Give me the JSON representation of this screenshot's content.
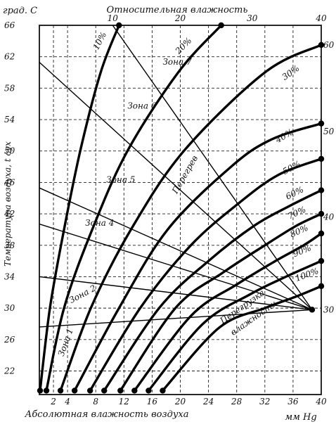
{
  "chart_data": {
    "type": "line",
    "title": "",
    "top_axis_label": "Относительная влажность",
    "xlabel": "Абсолютная влажность воздуха",
    "x_unit": "мм Hg",
    "ylabel": "Температура воздуха, t сух",
    "y_unit": "град. С",
    "xlim": [
      0,
      40
    ],
    "ylim": [
      19,
      66
    ],
    "grid": true,
    "x_ticks": [
      2,
      4,
      8,
      12,
      16,
      20,
      24,
      28,
      32,
      36,
      40
    ],
    "y_ticks": [
      22,
      26,
      30,
      34,
      38,
      42,
      46,
      50,
      54,
      58,
      62,
      66
    ],
    "x_tick_labels": [
      "2",
      "4",
      "8",
      "12",
      "16",
      "20",
      "24",
      "28",
      "32",
      "36",
      "40"
    ],
    "y_tick_labels": [
      "22",
      "26",
      "30",
      "34",
      "38",
      "42",
      "46",
      "50",
      "54",
      "58",
      "62",
      "66"
    ],
    "top_tick_labels": [
      "10",
      "20",
      "30",
      "40"
    ],
    "right_edge_labels": [
      "60",
      "50",
      "40",
      "30"
    ],
    "series": [
      {
        "name": "10%",
        "points": [
          [
            0.1,
            19.5
          ],
          [
            1.5,
            30
          ],
          [
            3.5,
            40
          ],
          [
            5.8,
            50
          ],
          [
            8.7,
            60
          ],
          [
            11.3,
            66
          ]
        ]
      },
      {
        "name": "20%",
        "points": [
          [
            1.0,
            19.5
          ],
          [
            3.5,
            30
          ],
          [
            7.5,
            40
          ],
          [
            12.5,
            50
          ],
          [
            19.7,
            60
          ],
          [
            25.8,
            66
          ]
        ]
      },
      {
        "name": "30%",
        "points": [
          [
            3.0,
            19.5
          ],
          [
            7.3,
            30
          ],
          [
            13.0,
            40
          ],
          [
            20.5,
            50
          ],
          [
            32.0,
            60
          ],
          [
            40.0,
            63.5
          ]
        ]
      },
      {
        "name": "40%",
        "points": [
          [
            5.0,
            19.5
          ],
          [
            11.3,
            30
          ],
          [
            18.2,
            40
          ],
          [
            27.2,
            48
          ],
          [
            33.0,
            51.5
          ],
          [
            40.0,
            53.5
          ]
        ]
      },
      {
        "name": "50%",
        "points": [
          [
            7.2,
            19.5
          ],
          [
            14.3,
            30
          ],
          [
            21.5,
            38
          ],
          [
            28.5,
            43.5
          ],
          [
            34.0,
            47
          ],
          [
            40.0,
            49
          ]
        ]
      },
      {
        "name": "60%",
        "points": [
          [
            9.2,
            19.5
          ],
          [
            17.0,
            30
          ],
          [
            24.0,
            36
          ],
          [
            30.5,
            40.5
          ],
          [
            35.5,
            43
          ],
          [
            40.0,
            45
          ]
        ]
      },
      {
        "name": "70%",
        "points": [
          [
            11.5,
            19.5
          ],
          [
            19.3,
            30
          ],
          [
            26.0,
            34.5
          ],
          [
            32.0,
            38
          ],
          [
            36.5,
            40.5
          ],
          [
            40.0,
            42
          ]
        ]
      },
      {
        "name": "80%",
        "points": [
          [
            13.5,
            19.5
          ],
          [
            21.5,
            29
          ],
          [
            28.0,
            33
          ],
          [
            33.5,
            36
          ],
          [
            37.5,
            38
          ],
          [
            40.0,
            39.5
          ]
        ]
      },
      {
        "name": "90%",
        "points": [
          [
            15.5,
            19.5
          ],
          [
            23.2,
            28
          ],
          [
            30.0,
            31.8
          ],
          [
            35.0,
            34
          ],
          [
            40.0,
            36
          ]
        ]
      },
      {
        "name": "100%",
        "points": [
          [
            17.5,
            19.5
          ],
          [
            25.5,
            27.5
          ],
          [
            32.0,
            30
          ],
          [
            36.5,
            31.5
          ],
          [
            40.0,
            32.8
          ]
        ]
      }
    ],
    "boundaries": [
      {
        "name": "",
        "points": [
          [
            0,
            61.3
          ],
          [
            38.7,
            29.8
          ]
        ]
      },
      {
        "name": "",
        "points": [
          [
            0,
            45.3
          ],
          [
            38.7,
            29.8
          ]
        ]
      },
      {
        "name": "",
        "points": [
          [
            0,
            40.7
          ],
          [
            38.7,
            29.8
          ]
        ]
      },
      {
        "name": "",
        "points": [
          [
            0,
            34.0
          ],
          [
            38.7,
            29.8
          ]
        ]
      },
      {
        "name": "",
        "points": [
          [
            0,
            27.6
          ],
          [
            38.7,
            29.8
          ]
        ]
      },
      {
        "name": "",
        "points": [
          [
            10.4,
            66
          ],
          [
            38.7,
            29.8
          ]
        ]
      }
    ],
    "end_points": [
      [
        0.1,
        19.5
      ],
      [
        1.0,
        19.5
      ],
      [
        3.0,
        19.5
      ],
      [
        5.0,
        19.5
      ],
      [
        7.2,
        19.5
      ],
      [
        9.2,
        19.5
      ],
      [
        11.5,
        19.5
      ],
      [
        13.5,
        19.5
      ],
      [
        15.5,
        19.5
      ],
      [
        17.5,
        19.5
      ],
      [
        38.7,
        29.8
      ],
      [
        11.3,
        66
      ],
      [
        25.8,
        66
      ],
      [
        40.0,
        63.5
      ],
      [
        40.0,
        53.5
      ],
      [
        40.0,
        49
      ],
      [
        40.0,
        45
      ],
      [
        40.0,
        42
      ],
      [
        40.0,
        39.5
      ],
      [
        40.0,
        36
      ],
      [
        40.0,
        32.8
      ]
    ],
    "annotations": [
      {
        "text": "10%",
        "x": 8.3,
        "y": 62.8,
        "rotate": -62
      },
      {
        "text": "20%",
        "x": 19.8,
        "y": 62.3,
        "rotate": -45
      },
      {
        "text": "30%",
        "x": 34.8,
        "y": 59.0,
        "rotate": -35
      },
      {
        "text": "40%",
        "x": 33.8,
        "y": 51.0,
        "rotate": -30
      },
      {
        "text": "50%",
        "x": 34.8,
        "y": 47.0,
        "rotate": -28
      },
      {
        "text": "60%",
        "x": 35.2,
        "y": 43.8,
        "rotate": -26
      },
      {
        "text": "70%",
        "x": 35.5,
        "y": 41.3,
        "rotate": -25
      },
      {
        "text": "80%",
        "x": 35.8,
        "y": 39.0,
        "rotate": -24
      },
      {
        "text": "90%",
        "x": 36.2,
        "y": 36.5,
        "rotate": -22
      },
      {
        "text": "100%",
        "x": 36.5,
        "y": 33.4,
        "rotate": -20
      },
      {
        "text": "Зона 7",
        "x": 17.5,
        "y": 61.0,
        "rotate": 0
      },
      {
        "text": "Зона 6",
        "x": 12.5,
        "y": 55.4,
        "rotate": 0
      },
      {
        "text": "Зона 5",
        "x": 9.5,
        "y": 46.0,
        "rotate": 0
      },
      {
        "text": "Зона 4",
        "x": 6.5,
        "y": 40.5,
        "rotate": 0
      },
      {
        "text": "Зона 2",
        "x": 4.5,
        "y": 30.6,
        "rotate": -28
      },
      {
        "text": "Зона 1",
        "x": 3.4,
        "y": 23.8,
        "rotate": -70
      },
      {
        "text": "Перегрев",
        "x": 19.5,
        "y": 44.5,
        "rotate": -60
      },
      {
        "text": "Перегрузка",
        "x": 26.0,
        "y": 28.0,
        "rotate": -35
      },
      {
        "text": "влажности",
        "x": 27.5,
        "y": 26.5,
        "rotate": -35
      }
    ]
  }
}
